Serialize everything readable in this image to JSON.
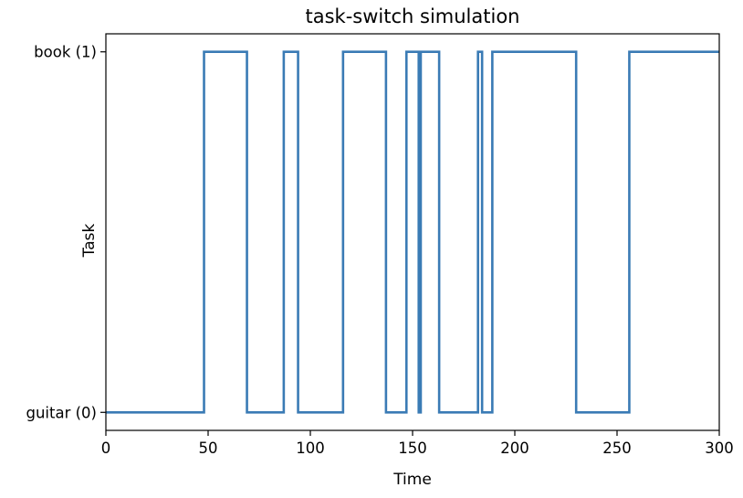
{
  "chart_data": {
    "type": "line",
    "step": "post",
    "title": "task-switch simulation",
    "xlabel": "Time",
    "ylabel": "Task",
    "xlim": [
      0,
      300
    ],
    "ylim": [
      -0.05,
      1.05
    ],
    "xticks": [
      {
        "value": 0,
        "label": "0"
      },
      {
        "value": 50,
        "label": "50"
      },
      {
        "value": 100,
        "label": "100"
      },
      {
        "value": 150,
        "label": "150"
      },
      {
        "value": 200,
        "label": "200"
      },
      {
        "value": 250,
        "label": "250"
      },
      {
        "value": 300,
        "label": "300"
      }
    ],
    "yticks": [
      {
        "value": 0,
        "label": "guitar (0)"
      },
      {
        "value": 1,
        "label": "book (1)"
      }
    ],
    "grid": false,
    "legend": "none",
    "series": [
      {
        "color": "#3a7bb5",
        "x": [
          0,
          48,
          69,
          87,
          94,
          116,
          137,
          147,
          153,
          154,
          163,
          182,
          184,
          189,
          230,
          256,
          300
        ],
        "y": [
          0,
          1,
          0,
          1,
          0,
          1,
          0,
          1,
          0,
          1,
          0,
          1,
          0,
          1,
          0,
          1,
          1
        ]
      }
    ]
  }
}
